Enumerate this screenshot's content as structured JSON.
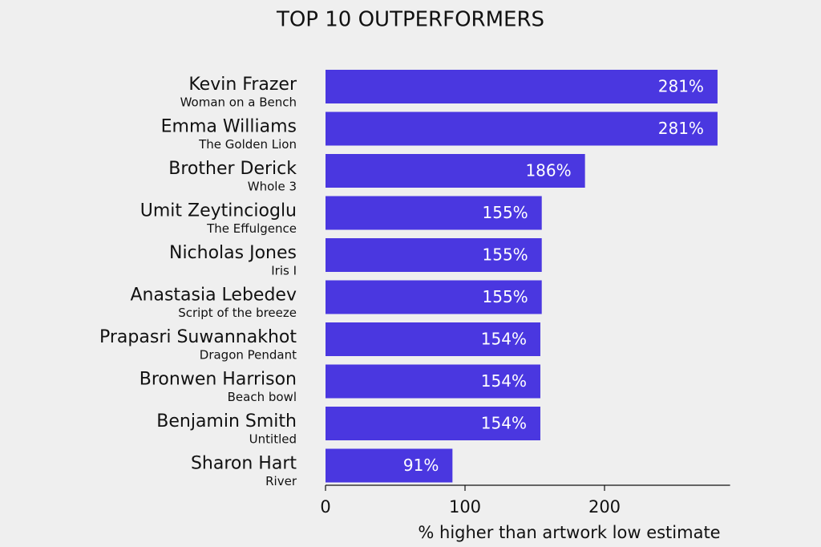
{
  "chart_data": {
    "type": "barh",
    "title": "TOP 10 OUTPERFORMERS",
    "x_label": "% higher than artwork low estimate",
    "categories": [
      "Kevin Frazer",
      "Emma Williams",
      "Brother Derick",
      "Umit Zeytincioglu",
      "Nicholas Jones",
      "Anastasia Lebedev",
      "Prapasri Suwannakhot",
      "Bronwen Harrison",
      "Benjamin Smith",
      "Sharon Hart"
    ],
    "subtitles": [
      "Woman on a Bench",
      "The Golden Lion",
      "Whole 3",
      "The Effulgence",
      "Iris I",
      "Script of the breeze",
      "Dragon Pendant",
      "Beach bowl",
      "Untitled",
      "River"
    ],
    "values": [
      281,
      281,
      186,
      155,
      155,
      155,
      154,
      154,
      154,
      91
    ],
    "value_labels": [
      "281%",
      "281%",
      "186%",
      "155%",
      "155%",
      "155%",
      "154%",
      "154%",
      "154%",
      "91%"
    ],
    "color": "#4a37e0",
    "xlim": [
      0,
      290
    ],
    "xticks": [
      0,
      100,
      200
    ]
  }
}
